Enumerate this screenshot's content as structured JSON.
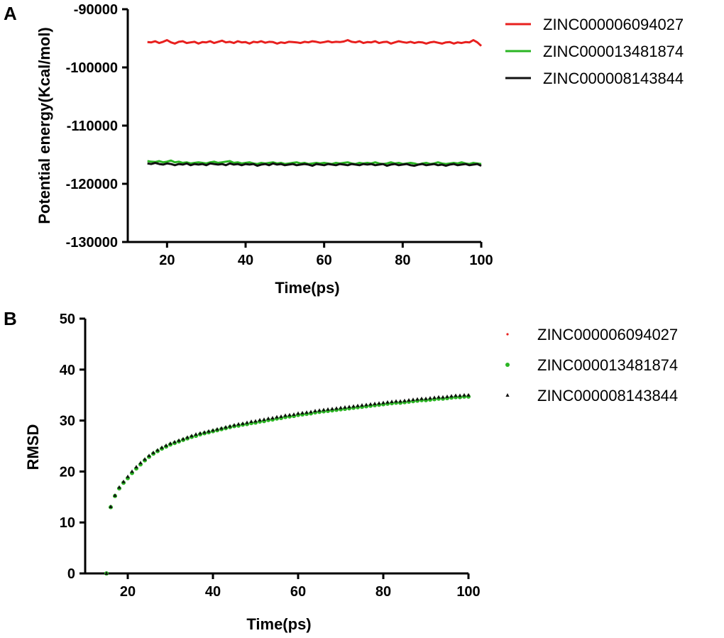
{
  "chart_data": [
    {
      "panel": "A",
      "type": "line",
      "xlabel": "Time(ps)",
      "ylabel": "Potential energy(Kcal/mol)",
      "xlim": [
        10,
        100
      ],
      "ylim": [
        -130000,
        -90000
      ],
      "x_ticks": [
        20,
        40,
        60,
        80,
        100
      ],
      "y_ticks": [
        -130000,
        -120000,
        -110000,
        -100000,
        -90000
      ],
      "x_tick_labels": [
        "20",
        "40",
        "60",
        "80",
        "100"
      ],
      "y_tick_labels": [
        "-130000",
        "-120000",
        "-110000",
        "-100000",
        "-90000"
      ],
      "legend_position": "right",
      "grid": false,
      "x_start": 15,
      "x_end": 100,
      "x_step": 1,
      "series": [
        {
          "name": "ZINC000006094027",
          "color": "#e8201e",
          "values": [
            -95650,
            -95700,
            -95500,
            -95800,
            -95600,
            -95300,
            -95700,
            -95900,
            -95600,
            -95500,
            -95800,
            -95700,
            -95600,
            -95900,
            -95650,
            -95700,
            -95500,
            -95800,
            -95600,
            -95400,
            -95700,
            -95600,
            -95800,
            -95500,
            -95700,
            -95650,
            -95900,
            -95600,
            -95700,
            -95500,
            -95750,
            -95600,
            -95650,
            -95900,
            -95700,
            -95800,
            -95600,
            -95650,
            -95700,
            -95800,
            -95600,
            -95700,
            -95500,
            -95600,
            -95750,
            -95650,
            -95500,
            -95700,
            -95600,
            -95650,
            -95550,
            -95300,
            -95600,
            -95700,
            -95500,
            -95800,
            -95650,
            -95700,
            -95500,
            -95800,
            -95650,
            -95600,
            -95900,
            -95700,
            -95500,
            -95650,
            -95750,
            -95600,
            -95800,
            -95650,
            -95700,
            -95900,
            -95700,
            -95600,
            -95750,
            -95900,
            -95700,
            -95650,
            -95900,
            -95700,
            -95800,
            -95650,
            -95700,
            -95300,
            -95700,
            -96300
          ]
        },
        {
          "name": "ZINC000013481874",
          "color": "#2ab523",
          "values": [
            -116100,
            -116200,
            -116250,
            -116100,
            -116300,
            -116200,
            -116000,
            -116300,
            -116200,
            -116400,
            -116300,
            -116500,
            -116400,
            -116300,
            -116400,
            -116500,
            -116300,
            -116200,
            -116400,
            -116300,
            -116200,
            -116100,
            -116400,
            -116300,
            -116500,
            -116400,
            -116300,
            -116500,
            -116600,
            -116400,
            -116500,
            -116400,
            -116300,
            -116500,
            -116400,
            -116600,
            -116500,
            -116400,
            -116300,
            -116500,
            -116400,
            -116600,
            -116500,
            -116400,
            -116500,
            -116400,
            -116500,
            -116600,
            -116400,
            -116500,
            -116400,
            -116300,
            -116500,
            -116600,
            -116400,
            -116500,
            -116400,
            -116500,
            -116300,
            -116500,
            -116600,
            -116500,
            -116300,
            -116500,
            -116400,
            -116600,
            -116500,
            -116400,
            -116500,
            -116700,
            -116500,
            -116400,
            -116600,
            -116500,
            -116300,
            -116500,
            -116600,
            -116500,
            -116400,
            -116500,
            -116300,
            -116500,
            -116600,
            -116400,
            -116500,
            -116600
          ]
        },
        {
          "name": "ZINC000008143844",
          "color": "#111111",
          "values": [
            -116500,
            -116600,
            -116400,
            -116600,
            -116700,
            -116500,
            -116600,
            -116800,
            -116600,
            -116700,
            -116500,
            -116800,
            -116600,
            -116700,
            -116600,
            -116800,
            -116500,
            -116600,
            -116700,
            -116600,
            -116800,
            -116500,
            -116700,
            -116600,
            -116800,
            -116600,
            -116700,
            -116600,
            -116900,
            -116700,
            -116600,
            -116800,
            -116500,
            -116700,
            -116600,
            -116800,
            -116700,
            -116600,
            -116800,
            -116700,
            -116600,
            -116700,
            -116900,
            -116600,
            -116700,
            -116800,
            -116600,
            -116700,
            -116800,
            -116600,
            -116700,
            -116800,
            -116600,
            -116700,
            -116800,
            -116600,
            -116700,
            -116600,
            -116800,
            -116700,
            -116600,
            -116900,
            -116700,
            -116600,
            -116800,
            -116700,
            -116600,
            -116800,
            -116900,
            -116700,
            -116600,
            -116800,
            -116700,
            -116600,
            -116800,
            -116700,
            -116900,
            -116700,
            -116600,
            -116800,
            -116700,
            -116600,
            -116800,
            -116700,
            -116600,
            -116900
          ]
        }
      ]
    },
    {
      "panel": "B",
      "type": "scatter",
      "xlabel": "Time(ps)",
      "ylabel": "RMSD",
      "xlim": [
        10,
        100
      ],
      "ylim": [
        0,
        50
      ],
      "x_ticks": [
        20,
        40,
        60,
        80,
        100
      ],
      "y_ticks": [
        0,
        10,
        20,
        30,
        40,
        50
      ],
      "x_tick_labels": [
        "20",
        "40",
        "60",
        "80",
        "100"
      ],
      "y_tick_labels": [
        "0",
        "10",
        "20",
        "30",
        "40",
        "50"
      ],
      "legend_position": "right",
      "grid": false,
      "x_start": 15,
      "x_end": 100,
      "x_step": 1,
      "series": [
        {
          "name": "ZINC000006094027",
          "color": "#e8201e",
          "marker": "dot",
          "values": [
            0,
            13.0,
            15.2,
            16.7,
            17.8,
            18.8,
            19.8,
            20.7,
            21.5,
            22.3,
            23.0,
            23.6,
            24.1,
            24.6,
            25.0,
            25.4,
            25.7,
            26.0,
            26.3,
            26.6,
            26.9,
            27.1,
            27.4,
            27.6,
            27.8,
            28.0,
            28.2,
            28.4,
            28.6,
            28.8,
            29.0,
            29.2,
            29.4,
            29.5,
            29.7,
            29.8,
            30.0,
            30.1,
            30.3,
            30.4,
            30.6,
            30.7,
            30.9,
            31.0,
            31.1,
            31.3,
            31.4,
            31.5,
            31.6,
            31.8,
            31.9,
            32.0,
            32.1,
            32.2,
            32.3,
            32.4,
            32.5,
            32.6,
            32.7,
            32.8,
            32.9,
            33.0,
            33.1,
            33.2,
            33.3,
            33.4,
            33.5,
            33.6,
            33.7,
            33.7,
            33.8,
            33.9,
            34.0,
            34.1,
            34.2,
            34.2,
            34.3,
            34.4,
            34.5,
            34.5,
            34.6,
            34.7,
            34.8,
            34.8,
            34.9,
            35.0
          ]
        },
        {
          "name": "ZINC000013481874",
          "color": "#2ab523",
          "marker": "circle",
          "values": [
            0,
            13.0,
            15.2,
            16.7,
            17.8,
            18.7,
            19.7,
            20.6,
            21.4,
            22.2,
            22.9,
            23.5,
            24.0,
            24.5,
            24.9,
            25.3,
            25.6,
            25.9,
            26.2,
            26.5,
            26.8,
            27.0,
            27.3,
            27.5,
            27.7,
            27.9,
            28.1,
            28.3,
            28.5,
            28.7,
            28.9,
            29.0,
            29.2,
            29.3,
            29.5,
            29.6,
            29.8,
            29.9,
            30.1,
            30.2,
            30.4,
            30.5,
            30.7,
            30.8,
            30.9,
            31.1,
            31.2,
            31.3,
            31.4,
            31.6,
            31.7,
            31.8,
            31.9,
            32.0,
            32.1,
            32.2,
            32.3,
            32.4,
            32.5,
            32.6,
            32.7,
            32.8,
            32.9,
            33.0,
            33.1,
            33.2,
            33.3,
            33.4,
            33.5,
            33.5,
            33.6,
            33.7,
            33.8,
            33.9,
            34.0,
            34.0,
            34.1,
            34.2,
            34.3,
            34.3,
            34.4,
            34.5,
            34.6,
            34.6,
            34.7,
            34.7
          ]
        },
        {
          "name": "ZINC000008143844",
          "color": "#111111",
          "marker": "triangle",
          "values": [
            0,
            13.1,
            15.3,
            16.9,
            18.0,
            19.0,
            20.0,
            20.9,
            21.7,
            22.4,
            23.1,
            23.7,
            24.2,
            24.7,
            25.1,
            25.5,
            25.8,
            26.1,
            26.4,
            26.7,
            27.0,
            27.3,
            27.5,
            27.7,
            27.9,
            28.1,
            28.3,
            28.5,
            28.7,
            28.9,
            29.1,
            29.3,
            29.4,
            29.6,
            29.8,
            29.9,
            30.1,
            30.2,
            30.4,
            30.5,
            30.7,
            30.8,
            31.0,
            31.1,
            31.2,
            31.4,
            31.5,
            31.6,
            31.7,
            31.9,
            32.0,
            32.1,
            32.2,
            32.3,
            32.4,
            32.5,
            32.6,
            32.7,
            32.8,
            32.9,
            33.0,
            33.1,
            33.2,
            33.3,
            33.4,
            33.5,
            33.6,
            33.7,
            33.8,
            33.8,
            33.9,
            34.0,
            34.1,
            34.2,
            34.3,
            34.3,
            34.4,
            34.5,
            34.6,
            34.6,
            34.7,
            34.8,
            34.9,
            34.9,
            35.0,
            35.0
          ]
        }
      ]
    }
  ]
}
